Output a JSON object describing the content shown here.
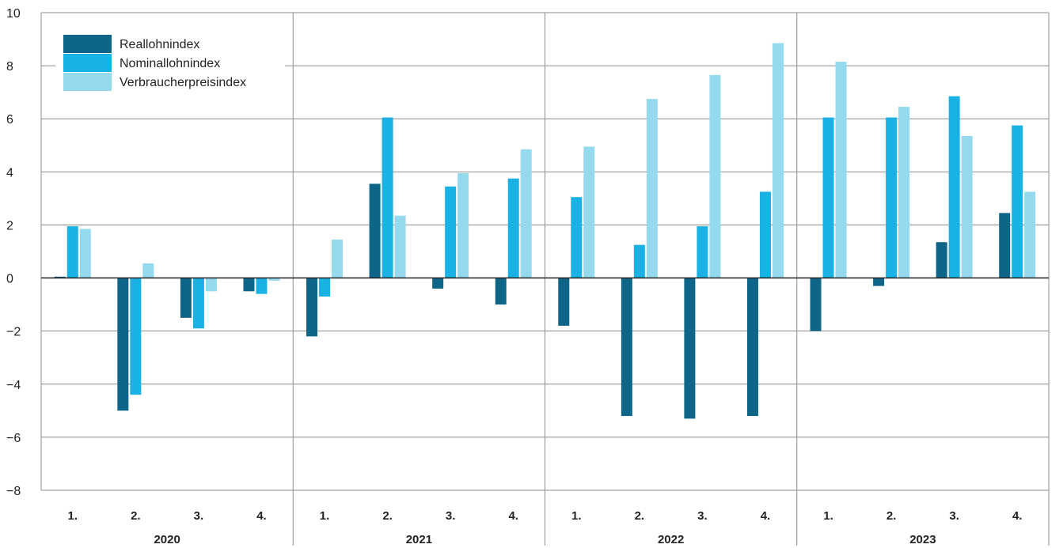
{
  "chart_data": {
    "type": "bar",
    "title": "",
    "xlabel": "",
    "ylabel": "",
    "ylim": [
      -8,
      10
    ],
    "yticks": [
      10,
      8,
      6,
      4,
      2,
      0,
      -2,
      -4,
      -6,
      -8
    ],
    "ytick_labels": [
      "10",
      "8",
      "6",
      "4",
      "2",
      "0",
      "−2",
      "−4",
      "−6",
      "−8"
    ],
    "grid": true,
    "legend_position": "top-left",
    "years": [
      "2020",
      "2021",
      "2022",
      "2023"
    ],
    "quarters": [
      "1.",
      "2.",
      "3.",
      "4."
    ],
    "categories": [
      "2020 1.",
      "2020 2.",
      "2020 3.",
      "2020 4.",
      "2021 1.",
      "2021 2.",
      "2021 3.",
      "2021 4.",
      "2022 1.",
      "2022 2.",
      "2022 3.",
      "2022 4.",
      "2023 1.",
      "2023 2.",
      "2023 3.",
      "2023 4."
    ],
    "series": [
      {
        "name": "Reallohnindex",
        "color": "#0e6587",
        "values": [
          0.05,
          -5.0,
          -1.5,
          -0.5,
          -2.2,
          3.55,
          -0.4,
          -1.0,
          -1.8,
          -5.2,
          -5.3,
          -5.2,
          -2.0,
          -0.3,
          1.35,
          2.45
        ]
      },
      {
        "name": "Nominallohnindex",
        "color": "#1ab2e4",
        "values": [
          1.95,
          -4.4,
          -1.9,
          -0.6,
          -0.7,
          6.05,
          3.45,
          3.75,
          3.05,
          1.25,
          1.95,
          3.25,
          6.05,
          6.05,
          6.85,
          5.75
        ]
      },
      {
        "name": "Verbraucherpreisindex",
        "color": "#95d9ee",
        "values": [
          1.85,
          0.55,
          -0.5,
          -0.1,
          1.45,
          2.35,
          3.95,
          4.85,
          4.95,
          6.75,
          7.65,
          8.85,
          8.15,
          6.45,
          5.35,
          3.25
        ]
      }
    ]
  }
}
